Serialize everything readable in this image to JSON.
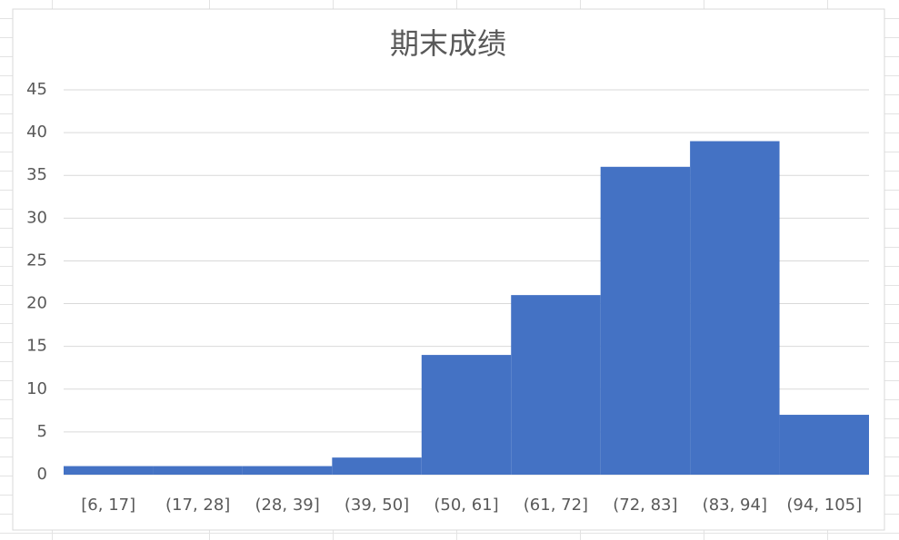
{
  "chart_data": {
    "type": "histogram",
    "title": "期末成绩",
    "categories": [
      "[6, 17]",
      "(17, 28]",
      "(28, 39]",
      "(39, 50]",
      "(50, 61]",
      "(61, 72]",
      "(72, 83]",
      "(83, 94]",
      "(94, 105]"
    ],
    "values": [
      1,
      1,
      1,
      2,
      14,
      21,
      36,
      39,
      7
    ],
    "color": "#4472c4",
    "ylim": [
      0,
      45
    ],
    "yticks": [
      0,
      5,
      10,
      15,
      20,
      25,
      30,
      35,
      40,
      45
    ],
    "grid": true
  }
}
